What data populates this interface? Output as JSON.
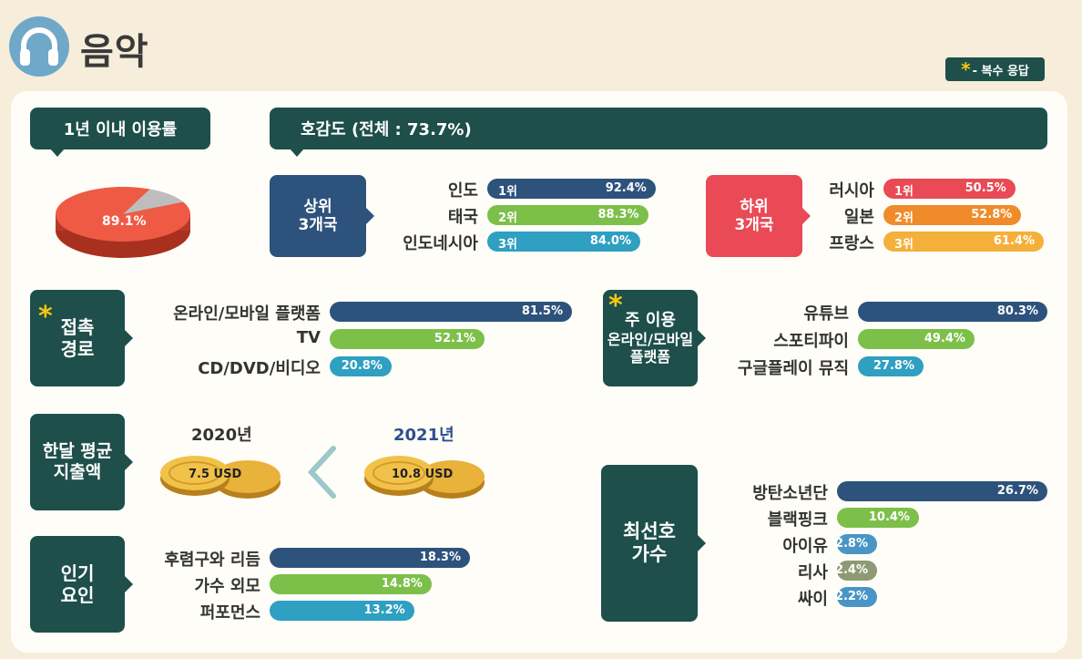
{
  "header": {
    "title": "음악",
    "icon": "headphones-icon"
  },
  "legend": {
    "star": "*",
    "text": "- 복수 응답"
  },
  "usage": {
    "title": "1년 이내 이용률",
    "value_label": "89.1%",
    "value": 89.1
  },
  "preference": {
    "title": "호감도 (전체 : 73.7%)",
    "top_label_1": "상위",
    "top_label_2": "3개국",
    "bottom_label_1": "하위",
    "bottom_label_2": "3개국"
  },
  "access": {
    "label_1": "접촉",
    "label_2": "경로",
    "star": "*"
  },
  "platform": {
    "label_1": "주 이용",
    "label_2": "온라인/모바일",
    "label_3": "플랫폼",
    "star": "*"
  },
  "spending": {
    "label_1": "한달 평균",
    "label_2": "지출액",
    "year_a": "2020년",
    "value_a": "7.5 USD",
    "year_b": "2021년",
    "value_b": "10.8 USD"
  },
  "factors": {
    "label_1": "인기",
    "label_2": "요인"
  },
  "singer": {
    "label_1": "최선호",
    "label_2": "가수"
  },
  "colors": {
    "navy": "#2d527c",
    "green": "#7cc04a",
    "teal": "#2f9fc2",
    "red": "#e94a55",
    "orange": "#ef8b2a",
    "amber": "#f4b03a",
    "olive": "#8f9a74",
    "lightblue": "#4a95c5",
    "dark": "#1e4f4a"
  },
  "chart_data": [
    {
      "type": "pie",
      "name": "usage",
      "values": [
        89.1,
        10.9
      ],
      "labels": [
        "89.1%",
        ""
      ]
    },
    {
      "type": "bar",
      "name": "top3",
      "items": [
        {
          "label": "인도",
          "rank": "1위",
          "value": 92.4,
          "value_label": "92.4%",
          "color": "navy"
        },
        {
          "label": "태국",
          "rank": "2위",
          "value": 88.3,
          "value_label": "88.3%",
          "color": "green"
        },
        {
          "label": "인도네시아",
          "rank": "3위",
          "value": 84.0,
          "value_label": "84.0%",
          "color": "teal"
        }
      ]
    },
    {
      "type": "bar",
      "name": "bottom3",
      "items": [
        {
          "label": "러시아",
          "rank": "1위",
          "value": 50.5,
          "value_label": "50.5%",
          "color": "red"
        },
        {
          "label": "일본",
          "rank": "2위",
          "value": 52.8,
          "value_label": "52.8%",
          "color": "orange"
        },
        {
          "label": "프랑스",
          "rank": "3위",
          "value": 61.4,
          "value_label": "61.4%",
          "color": "amber"
        }
      ]
    },
    {
      "type": "bar",
      "name": "access",
      "items": [
        {
          "label": "온라인/모바일 플랫폼",
          "value": 81.5,
          "value_label": "81.5%",
          "color": "navy"
        },
        {
          "label": "TV",
          "value": 52.1,
          "value_label": "52.1%",
          "color": "green"
        },
        {
          "label": "CD/DVD/비디오",
          "value": 20.8,
          "value_label": "20.8%",
          "color": "teal"
        }
      ]
    },
    {
      "type": "bar",
      "name": "platform",
      "items": [
        {
          "label": "유튜브",
          "value": 80.3,
          "value_label": "80.3%",
          "color": "navy"
        },
        {
          "label": "스포티파이",
          "value": 49.4,
          "value_label": "49.4%",
          "color": "green"
        },
        {
          "label": "구글플레이 뮤직",
          "value": 27.8,
          "value_label": "27.8%",
          "color": "teal"
        }
      ]
    },
    {
      "type": "bar",
      "name": "factors",
      "items": [
        {
          "label": "후렴구와 리듬",
          "value": 18.3,
          "value_label": "18.3%",
          "color": "navy"
        },
        {
          "label": "가수 외모",
          "value": 14.8,
          "value_label": "14.8%",
          "color": "green"
        },
        {
          "label": "퍼포먼스",
          "value": 13.2,
          "value_label": "13.2%",
          "color": "teal"
        }
      ]
    },
    {
      "type": "bar",
      "name": "singer",
      "items": [
        {
          "label": "방탄소년단",
          "value": 26.7,
          "value_label": "26.7%",
          "color": "navy"
        },
        {
          "label": "블랙핑크",
          "value": 10.4,
          "value_label": "10.4%",
          "color": "green"
        },
        {
          "label": "아이유",
          "value": 2.8,
          "value_label": "2.8%",
          "color": "lightblue"
        },
        {
          "label": "리사",
          "value": 2.4,
          "value_label": "2.4%",
          "color": "olive"
        },
        {
          "label": "싸이",
          "value": 2.2,
          "value_label": "2.2%",
          "color": "lightblue"
        }
      ]
    }
  ]
}
